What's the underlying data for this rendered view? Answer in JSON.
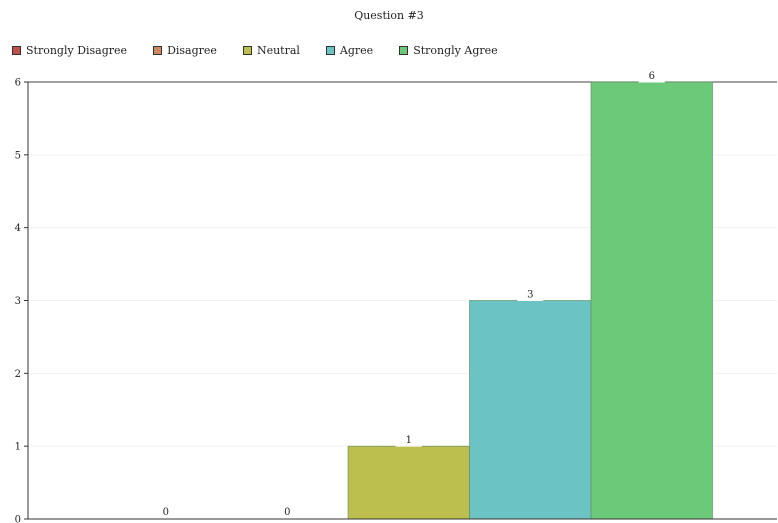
{
  "chart_data": {
    "type": "bar",
    "title": "Question #3",
    "categories": [
      "Strongly Disagree",
      "Disagree",
      "Neutral",
      "Agree",
      "Strongly Agree"
    ],
    "values": [
      0,
      0,
      1,
      3,
      6
    ],
    "colors": [
      "#c0504d",
      "#d08860",
      "#bcbf4d",
      "#6cc3c3",
      "#6cc97a"
    ],
    "ylim": [
      0,
      6
    ],
    "yticks": [
      "0",
      "1",
      "2",
      "3",
      "4",
      "5",
      "6"
    ],
    "data_labels": [
      "0",
      "0",
      "1",
      "3",
      "6"
    ],
    "legend_position": "top-left",
    "grid": true
  }
}
